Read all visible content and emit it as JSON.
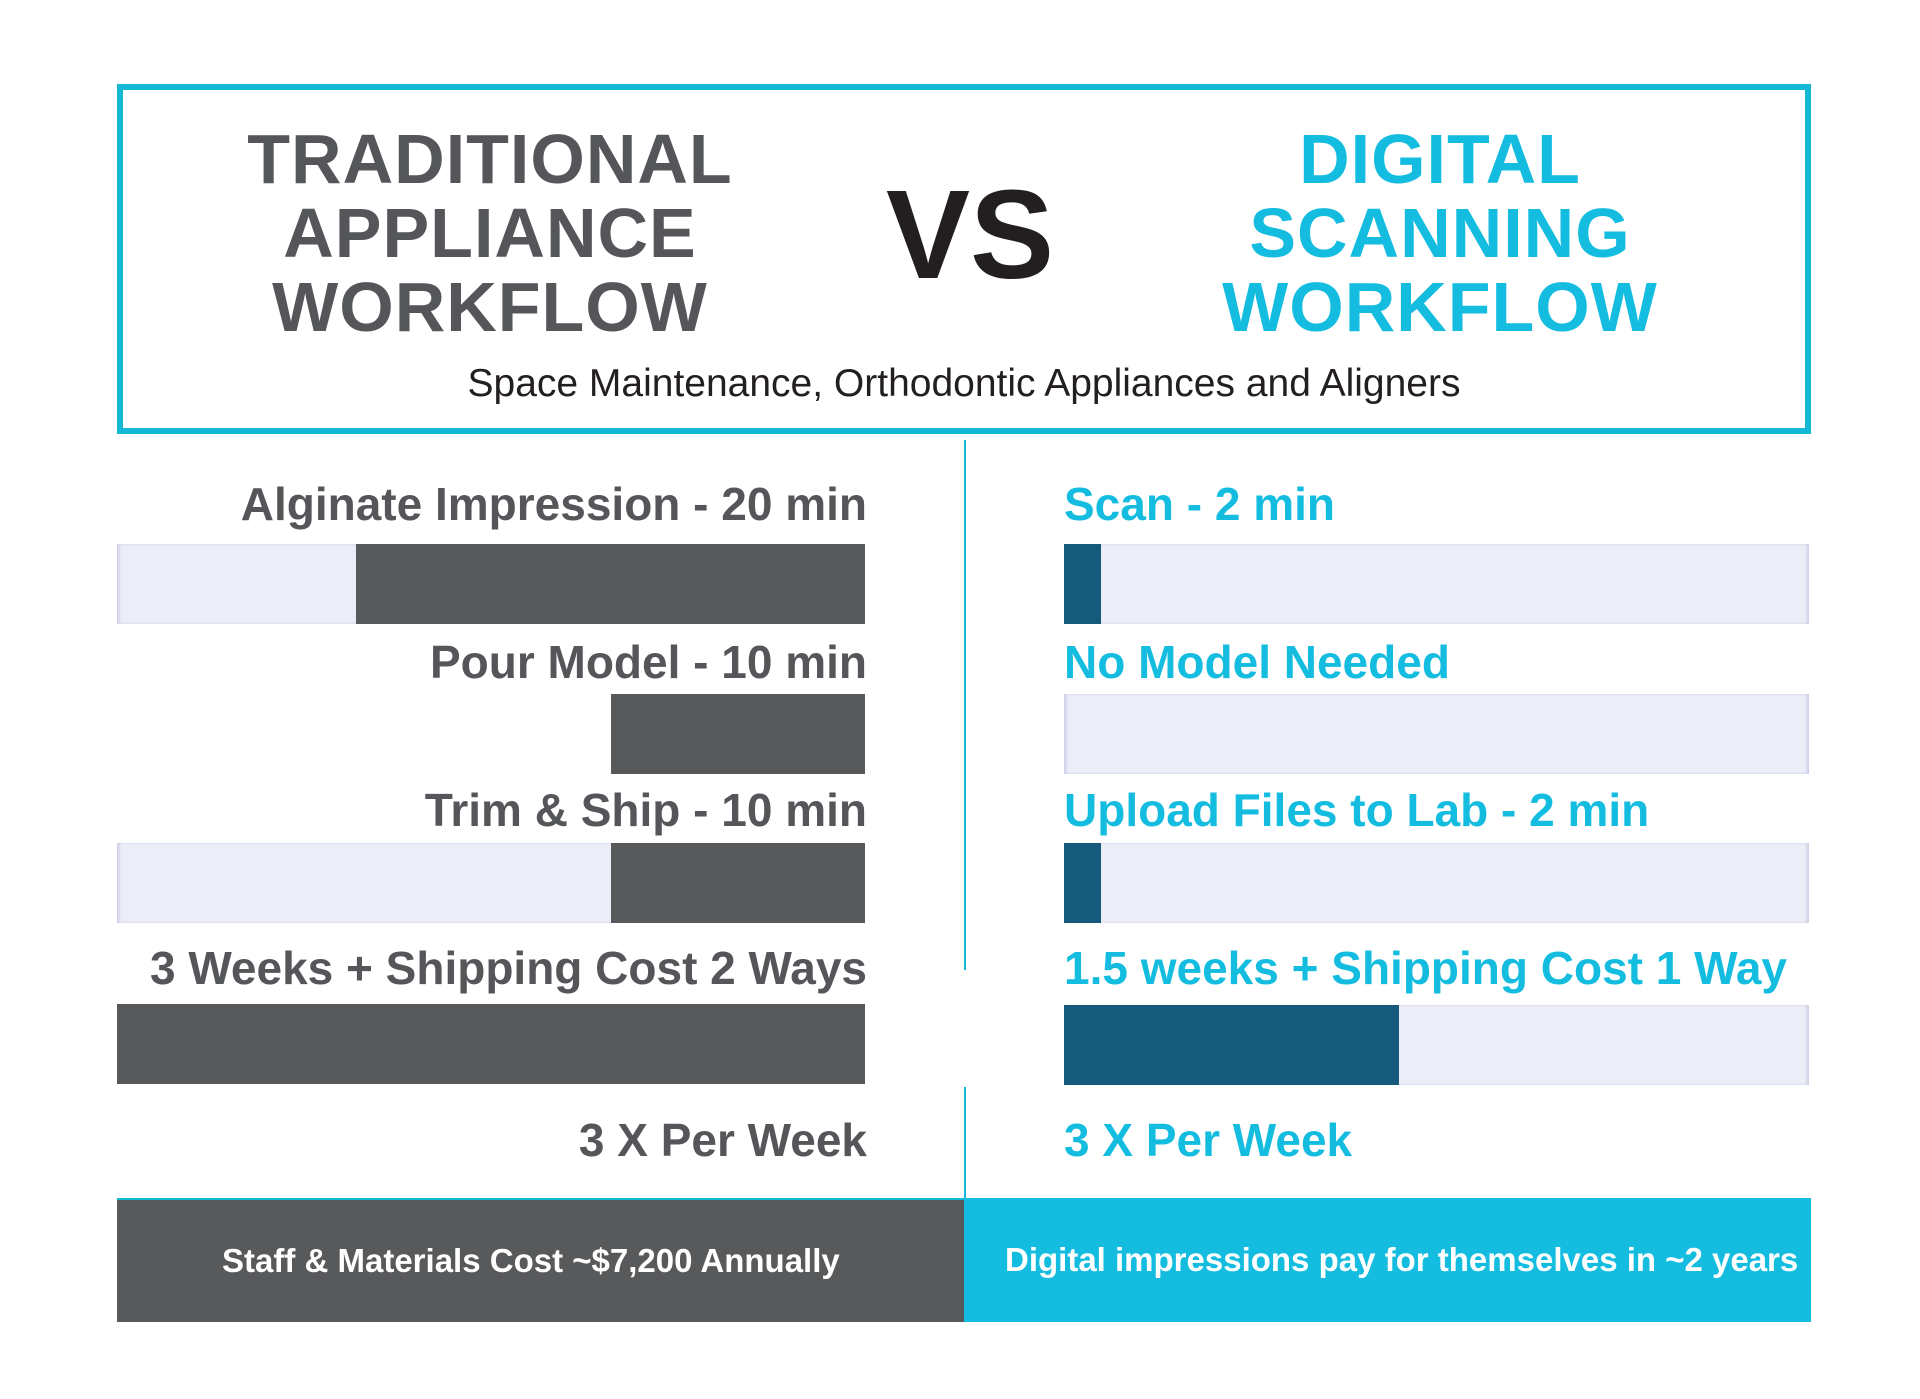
{
  "header": {
    "title_left": "TRADITIONAL\nAPPLIANCE\nWORKFLOW",
    "vs": "VS",
    "title_right": "DIGITAL\nSCANNING\nWORKFLOW",
    "subtitle": "Space Maintenance, Orthodontic Appliances and Aligners"
  },
  "colors": {
    "traditional": "#555659",
    "digital": "#14bde0",
    "digital_bar": "#165a7b",
    "track": "#eceef7",
    "border": "#14b7d6"
  },
  "chart_data": {
    "type": "bar",
    "left": {
      "rows": [
        {
          "label": "Alginate Impression - 20 min",
          "fill_fraction": 0.68
        },
        {
          "label": "Pour Model - 10 min",
          "fill_fraction": 0.34
        },
        {
          "label": "Trim & Ship - 10 min",
          "fill_fraction": 0.34
        },
        {
          "label": "3 Weeks + Shipping Cost 2 Ways",
          "fill_fraction": 1.0
        }
      ],
      "frequency": "3 X Per Week"
    },
    "right": {
      "rows": [
        {
          "label": "Scan - 2 min",
          "fill_fraction": 0.05
        },
        {
          "label": "No Model Needed",
          "fill_fraction": 0.0
        },
        {
          "label": "Upload Files to Lab - 2 min",
          "fill_fraction": 0.05
        },
        {
          "label": "1.5 weeks + Shipping Cost 1 Way",
          "fill_fraction": 0.45
        }
      ],
      "frequency": "3 X Per Week"
    }
  },
  "footer": {
    "left": "Staff & Materials Cost ~$7,200 Annually",
    "right": "Digital impressions pay for themselves in ~2 years"
  }
}
